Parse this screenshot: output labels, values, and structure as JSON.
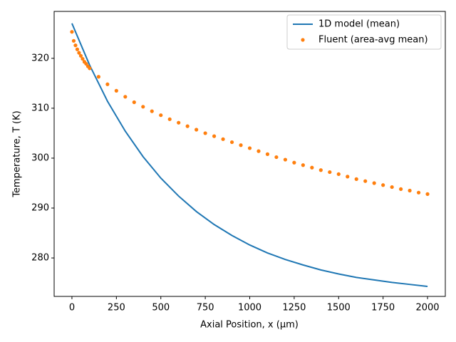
{
  "chart_data": {
    "type": "line",
    "xlabel": "Axial Position, x (μm)",
    "ylabel": "Temperature, T (K)",
    "xlim": [
      -100,
      2100
    ],
    "ylim": [
      272.3,
      329.4
    ],
    "xticks": [
      0,
      250,
      500,
      750,
      1000,
      1250,
      1500,
      1750,
      2000
    ],
    "yticks": [
      280,
      290,
      300,
      310,
      320
    ],
    "legend": "upper right",
    "series": [
      {
        "name": "1D model (mean)",
        "type": "line",
        "color": "#1f77b4",
        "x": [
          0,
          100,
          200,
          300,
          400,
          500,
          600,
          700,
          800,
          900,
          1000,
          1100,
          1200,
          1300,
          1400,
          1500,
          1600,
          1700,
          1800,
          1900,
          2000
        ],
        "values": [
          327.0,
          318.6,
          311.4,
          305.4,
          300.3,
          296.0,
          292.4,
          289.3,
          286.7,
          284.5,
          282.6,
          281.0,
          279.7,
          278.6,
          277.6,
          276.8,
          276.1,
          275.6,
          275.1,
          274.7,
          274.3
        ]
      },
      {
        "name": "Fluent (area-avg mean)",
        "type": "scatter",
        "color": "#ff7f0e",
        "x": [
          0,
          10,
          20,
          30,
          40,
          50,
          60,
          70,
          80,
          90,
          100,
          150,
          200,
          250,
          300,
          350,
          400,
          450,
          500,
          550,
          600,
          650,
          700,
          750,
          800,
          850,
          900,
          950,
          1000,
          1050,
          1100,
          1150,
          1200,
          1250,
          1300,
          1350,
          1400,
          1450,
          1500,
          1550,
          1600,
          1650,
          1700,
          1750,
          1800,
          1850,
          1900,
          1950,
          2000
        ],
        "values": [
          325.3,
          323.5,
          322.6,
          321.8,
          321.1,
          320.5,
          319.9,
          319.3,
          318.9,
          318.4,
          318.0,
          316.3,
          314.8,
          313.5,
          312.3,
          311.2,
          310.3,
          309.4,
          308.6,
          307.8,
          307.1,
          306.4,
          305.7,
          305.0,
          304.4,
          303.8,
          303.2,
          302.6,
          302.0,
          301.4,
          300.8,
          300.2,
          299.7,
          299.1,
          298.6,
          298.1,
          297.6,
          297.2,
          296.8,
          296.3,
          295.8,
          295.4,
          295.0,
          294.6,
          294.2,
          293.8,
          293.5,
          293.1,
          292.8
        ]
      }
    ]
  }
}
